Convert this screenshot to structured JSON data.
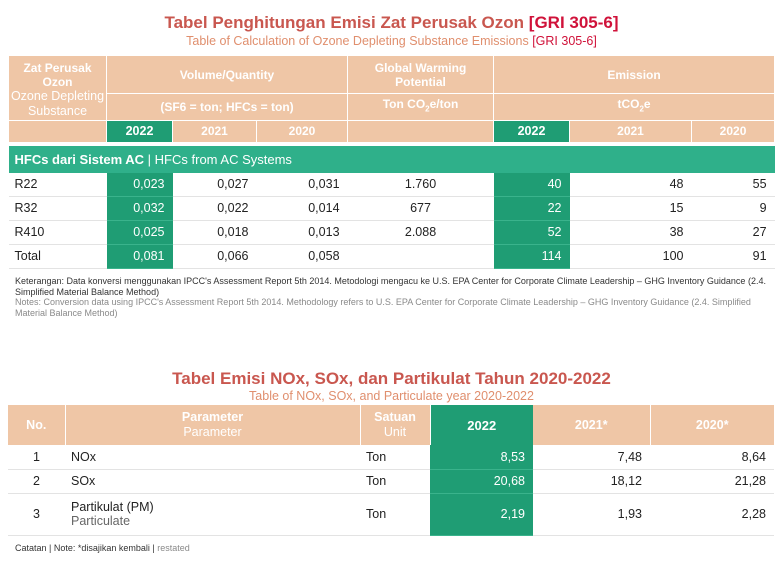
{
  "table1": {
    "title_id": "Tabel Penghitungan Emisi Zat Perusak Ozon",
    "title_gri": "[GRI 305-6]",
    "title_en": "Table of Calculation of Ozone Depleting Substance Emissions",
    "title_en_gri": "[GRI 305-6]",
    "headers": {
      "substance_id": "Zat Perusak Ozon",
      "substance_en": "Ozone Depleting Substance",
      "volume": "Volume/Quantity",
      "volume_unit": "(SF6 = ton; HFCs = ton)",
      "gwp": "Global Warming Potential",
      "gwp_unit_a": "Ton CO",
      "gwp_unit_sub": "2",
      "gwp_unit_b": "e/ton",
      "emission": "Emission",
      "emission_unit_a": "tCO",
      "emission_unit_sub": "2",
      "emission_unit_b": "e",
      "years": [
        "2022",
        "2021",
        "2020"
      ]
    },
    "section_id": "HFCs dari Sistem AC",
    "section_sep": " | ",
    "section_en": "HFCs from AC Systems",
    "rows": [
      {
        "name": "R22",
        "v2022": "0,023",
        "v2021": "0,027",
        "v2020": "0,031",
        "gwp": "1.760",
        "e2022": "40",
        "e2021": "48",
        "e2020": "55"
      },
      {
        "name": "R32",
        "v2022": "0,032",
        "v2021": "0,022",
        "v2020": "0,014",
        "gwp": "677",
        "e2022": "22",
        "e2021": "15",
        "e2020": "9"
      },
      {
        "name": "R410",
        "v2022": "0,025",
        "v2021": "0,018",
        "v2020": "0,013",
        "gwp": "2.088",
        "e2022": "52",
        "e2021": "38",
        "e2020": "27"
      },
      {
        "name": "Total",
        "v2022": "0,081",
        "v2021": "0,066",
        "v2020": "0,058",
        "gwp": "",
        "e2022": "114",
        "e2021": "100",
        "e2020": "91"
      }
    ],
    "note_id": "Keterangan: Data konversi menggunakan IPCC's Assessment Report 5th 2014. Metodologi mengacu ke U.S. EPA Center for Corporate Climate Leadership – GHG Inventory Guidance (2.4. Simplified Material Balance Method)",
    "note_en": "Notes: Conversion data using IPCC's Assessment Report 5th 2014. Methodology refers to U.S. EPA Center for Corporate Climate Leadership – GHG Inventory Guidance (2.4. Simplified Material Balance Method)"
  },
  "table2": {
    "title_id": "Tabel Emisi NOx, SOx, dan Partikulat Tahun 2020-2022",
    "title_en": "Table of NOx, SOx, and Particulate year 2020-2022",
    "headers": {
      "no": "No.",
      "param_id": "Parameter",
      "param_en": "Parameter",
      "unit_id": "Satuan",
      "unit_en": "Unit",
      "y2022": "2022",
      "y2021": "2021*",
      "y2020": "2020*"
    },
    "rows": [
      {
        "no": "1",
        "param": "NOx",
        "param_en": "",
        "unit": "Ton",
        "v2022": "8,53",
        "v2021": "7,48",
        "v2020": "8,64"
      },
      {
        "no": "2",
        "param": "SOx",
        "param_en": "",
        "unit": "Ton",
        "v2022": "20,68",
        "v2021": "18,12",
        "v2020": "21,28"
      },
      {
        "no": "3",
        "param": "Partikulat (PM)",
        "param_en": "Particulate",
        "unit": "Ton",
        "v2022": "2,19",
        "v2021": "1,93",
        "v2020": "2,28"
      }
    ],
    "note_id": "Catatan | Note: *disajikan kembali",
    "note_sep": " | ",
    "note_en": "restated"
  }
}
